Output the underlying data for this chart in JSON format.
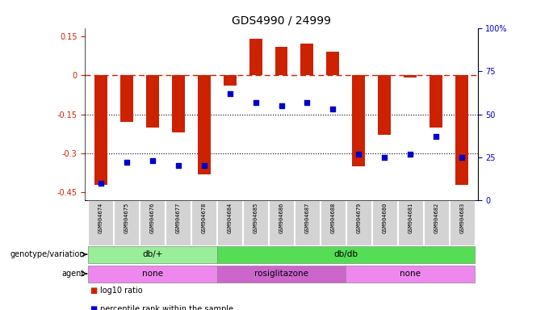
{
  "title": "GDS4990 / 24999",
  "samples": [
    "GSM904674",
    "GSM904675",
    "GSM904676",
    "GSM904677",
    "GSM904678",
    "GSM904684",
    "GSM904685",
    "GSM904686",
    "GSM904687",
    "GSM904688",
    "GSM904679",
    "GSM904680",
    "GSM904681",
    "GSM904682",
    "GSM904683"
  ],
  "log10_ratio": [
    -0.42,
    -0.18,
    -0.2,
    -0.22,
    -0.38,
    -0.04,
    0.14,
    0.11,
    0.12,
    0.09,
    -0.35,
    -0.23,
    -0.01,
    -0.2,
    -0.42
  ],
  "percentile_rank": [
    10,
    22,
    23,
    20,
    20,
    62,
    57,
    55,
    57,
    53,
    27,
    25,
    27,
    37,
    25
  ],
  "genotype_groups": [
    {
      "label": "db/+",
      "start": 0,
      "end": 5,
      "color": "#99EE99"
    },
    {
      "label": "db/db",
      "start": 5,
      "end": 15,
      "color": "#55DD55"
    }
  ],
  "agent_groups": [
    {
      "label": "none",
      "start": 0,
      "end": 5,
      "color": "#EE88EE"
    },
    {
      "label": "rosiglitazone",
      "start": 5,
      "end": 10,
      "color": "#CC66CC"
    },
    {
      "label": "none",
      "start": 10,
      "end": 15,
      "color": "#EE88EE"
    }
  ],
  "bar_color": "#CC2200",
  "dot_color": "#0000CC",
  "dashed_line_color": "#CC2200",
  "dotted_line_color": "#000000",
  "ylim_left": [
    -0.48,
    0.18
  ],
  "ylim_right": [
    0,
    100
  ],
  "yticks_left": [
    0.15,
    0,
    -0.15,
    -0.3,
    -0.45
  ],
  "yticks_right": [
    100,
    75,
    50,
    25,
    0
  ],
  "bg_color": "#FFFFFF",
  "title_fontsize": 10,
  "tick_fontsize": 7,
  "genotype_label": "genotype/variation",
  "agent_label": "agent",
  "legend_items": [
    "log10 ratio",
    "percentile rank within the sample"
  ]
}
